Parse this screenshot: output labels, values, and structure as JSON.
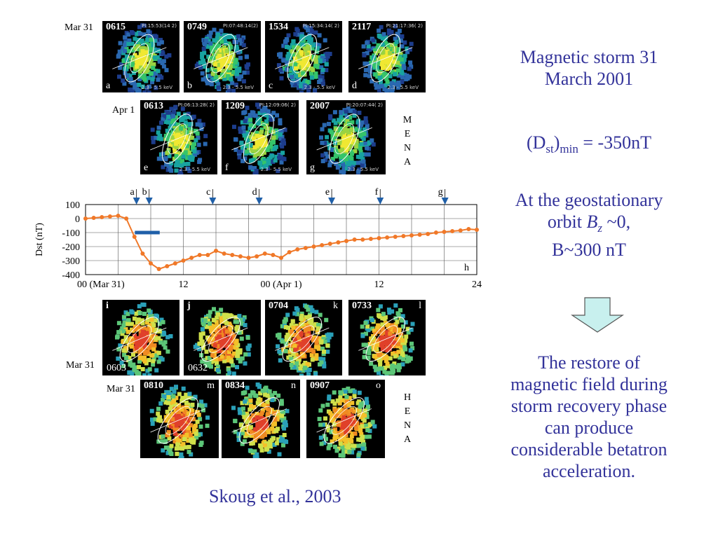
{
  "mena": {
    "row1_label": "Mar 31",
    "row2_label": "Apr 1",
    "side_letters": [
      "M",
      "E",
      "N",
      "A"
    ],
    "panels": [
      {
        "time": "0615",
        "letter": "a",
        "header": "PI:15:53(14 2)",
        "energy": "2.3 - 5.5 keV"
      },
      {
        "time": "0749",
        "letter": "b",
        "header": "PI:07:48:14(2)",
        "energy": "2.3 - 5.5 keV"
      },
      {
        "time": "1534",
        "letter": "c",
        "header": "PI:15:34:14( 2)",
        "energy": "2.3 - 5.5 keV"
      },
      {
        "time": "2117",
        "letter": "d",
        "header": "PI:21:17:36( 2)",
        "energy": "2.3 - 5.5 keV"
      },
      {
        "time": "0613",
        "letter": "e",
        "header": "PI:06:13:28( 2)",
        "energy": "2.3 - 5.5 keV"
      },
      {
        "time": "1209",
        "letter": "f",
        "header": "PI:12:09:06( 2)",
        "energy": "2.3 - 5.5 keV"
      },
      {
        "time": "2007",
        "letter": "g",
        "header": "PI:20:07:44( 2)",
        "energy": "2.3 - 5.5 keV"
      }
    ]
  },
  "hena": {
    "row1_label": "Mar 31",
    "row2_label": "Mar 31",
    "side_letters": [
      "H",
      "E",
      "N",
      "A"
    ],
    "panels": [
      {
        "time": "0603",
        "letter": "i"
      },
      {
        "time": "0632",
        "letter": "j"
      },
      {
        "time": "0704",
        "letter": "k"
      },
      {
        "time": "0733",
        "letter": "l"
      },
      {
        "time": "0810",
        "letter": "m"
      },
      {
        "time": "0834",
        "letter": "n"
      },
      {
        "time": "0907",
        "letter": "o"
      }
    ]
  },
  "chart_data": {
    "type": "line",
    "ylabel": "Dst (nT)",
    "xlabel": "",
    "x_tick_labels": [
      "00 (Mar 31)",
      "12",
      "00 (Apr 1)",
      "12",
      "24"
    ],
    "x_tick_hours": [
      0,
      12,
      24,
      36,
      48
    ],
    "y_ticks": [
      100,
      0,
      -100,
      -200,
      -300,
      -400
    ],
    "ylim": [
      -400,
      100
    ],
    "xlim": [
      0,
      48
    ],
    "h_label": "h",
    "markers": [
      {
        "label": "a",
        "hour": 6.25
      },
      {
        "label": "b",
        "hour": 7.8
      },
      {
        "label": "c",
        "hour": 15.6
      },
      {
        "label": "d",
        "hour": 21.3
      },
      {
        "label": "e",
        "hour": 30.2
      },
      {
        "label": "f",
        "hour": 36.15
      },
      {
        "label": "g",
        "hour": 44.1
      }
    ],
    "hena_interval_hours": [
      6.05,
      9.1
    ],
    "hena_interval_level": -100,
    "series": [
      {
        "x": [
          0,
          1,
          2,
          3,
          4,
          5,
          6,
          7,
          8,
          9,
          10,
          11,
          12,
          13,
          14,
          15,
          16,
          17,
          18,
          19,
          20,
          21,
          22,
          23,
          24,
          25,
          26,
          27,
          28,
          29,
          30,
          31,
          32,
          33,
          34,
          35,
          36,
          37,
          38,
          39,
          40,
          41,
          42,
          43,
          44,
          45,
          46,
          47,
          48
        ],
        "y": [
          0,
          5,
          10,
          15,
          20,
          0,
          -130,
          -250,
          -320,
          -360,
          -340,
          -320,
          -300,
          -280,
          -260,
          -260,
          -230,
          -250,
          -260,
          -270,
          -280,
          -270,
          -250,
          -260,
          -280,
          -240,
          -220,
          -210,
          -200,
          -190,
          -180,
          -170,
          -160,
          -150,
          -150,
          -145,
          -140,
          -135,
          -130,
          -125,
          -120,
          -115,
          -110,
          -100,
          -95,
          -90,
          -85,
          -75,
          -80
        ]
      }
    ]
  },
  "text": {
    "title_line1": "Magnetic storm 31",
    "title_line2": "March 2001",
    "dst_prefix": "(D",
    "dst_sub": "st",
    "dst_mid": ")",
    "dst_sub2": "min",
    "dst_value": " = -350nT",
    "geo_line1": "At the geostationary",
    "geo_line2_a": "orbit ",
    "geo_line2_b": "B",
    "geo_line2_sub": "z",
    "geo_line2_c": " ~0,",
    "geo_line3": "B~300 nT",
    "restore_lines": [
      "The restore of",
      "magnetic field during",
      "storm recovery phase",
      "can produce",
      "considerable betatron",
      "acceleration."
    ],
    "citation": "Skoug et al., 2003"
  },
  "colors": {
    "text_blue": "#33339a",
    "dst_line": "#f07828",
    "marker_blue": "#1f5fa8",
    "bar_blue": "#1f5fa8",
    "arrow_fill": "#c8f0ee"
  }
}
